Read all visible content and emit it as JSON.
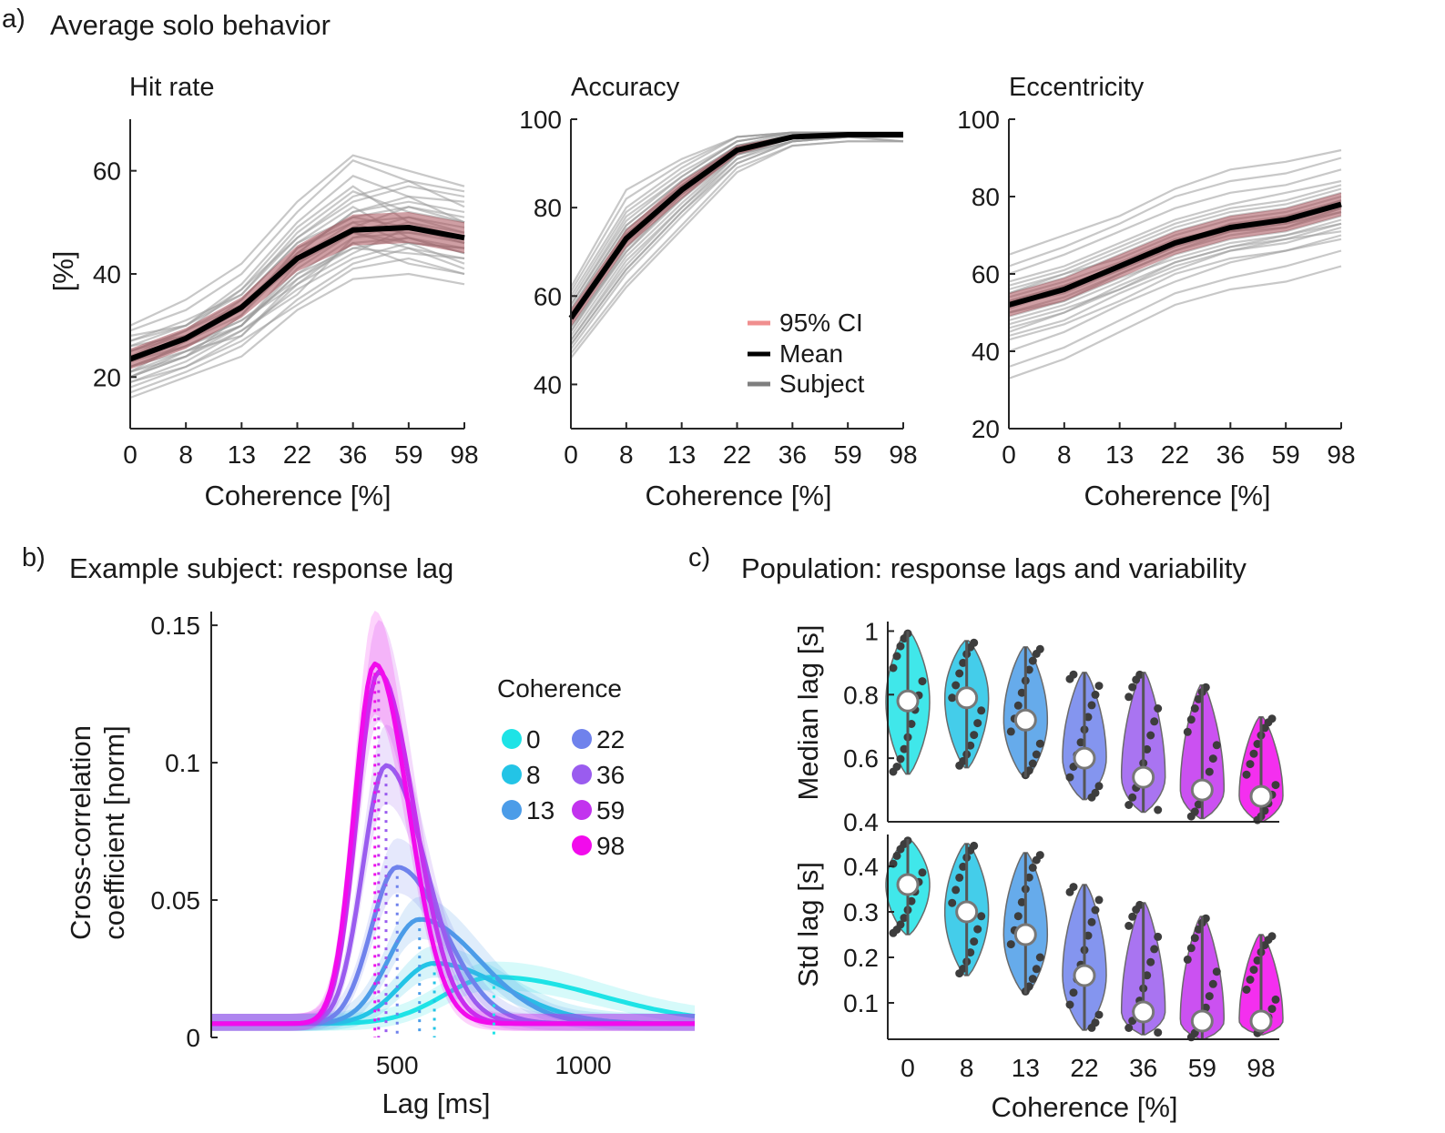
{
  "figure": {
    "panels": [
      {
        "letter": "a)",
        "title": "Average solo behavior"
      },
      {
        "letter": "b)",
        "title": "Example subject: response lag"
      },
      {
        "letter": "c)",
        "title": "Population: response lags and variability"
      }
    ],
    "legend_a": [
      {
        "label": "95% CI",
        "color": "#f08f8f"
      },
      {
        "label": "Mean",
        "color": "#000000"
      },
      {
        "label": "Subject",
        "color": "#7f7f7f"
      }
    ],
    "legend_b": {
      "title": "Coherence",
      "items": [
        {
          "label": "0",
          "color": "#1ee3e6"
        },
        {
          "label": "8",
          "color": "#23c4e6"
        },
        {
          "label": "13",
          "color": "#4b9ce8"
        },
        {
          "label": "22",
          "color": "#6f82ec"
        },
        {
          "label": "36",
          "color": "#9a5cef"
        },
        {
          "label": "59",
          "color": "#c233ee"
        },
        {
          "label": "98",
          "color": "#f20bec"
        }
      ]
    }
  },
  "chart_data": [
    {
      "type": "line",
      "panel": "a",
      "title": "Hit rate",
      "xlabel": "Coherence [%]",
      "ylabel": "[%]",
      "categories": [
        "0",
        "8",
        "13",
        "22",
        "36",
        "59",
        "98"
      ],
      "ylim": [
        10,
        70
      ],
      "yticks": [
        20,
        40,
        60
      ],
      "series": [
        {
          "name": "Mean",
          "values": [
            23.5,
            27.5,
            33.5,
            43,
            48.5,
            49,
            47
          ]
        },
        {
          "name": "95% CI",
          "lower": [
            21.5,
            25.5,
            31.5,
            40.5,
            45.5,
            46,
            44
          ],
          "upper": [
            25.5,
            29.5,
            35.5,
            45.5,
            51.5,
            52,
            50
          ]
        }
      ],
      "subjects": [
        [
          22,
          26,
          31,
          39,
          46,
          47,
          45
        ],
        [
          25,
          28,
          34,
          44,
          52,
          55,
          50
        ],
        [
          20,
          24,
          29,
          37,
          43,
          46,
          42
        ],
        [
          27,
          31,
          36,
          47,
          55,
          58,
          53
        ],
        [
          18,
          22,
          27,
          34,
          41,
          43,
          40
        ],
        [
          24,
          29,
          37,
          49,
          57,
          50,
          48
        ],
        [
          21,
          27,
          33,
          42,
          49,
          53,
          51
        ],
        [
          29,
          33,
          40,
          52,
          62,
          58,
          56
        ],
        [
          16,
          20,
          24,
          33,
          39,
          40,
          38
        ],
        [
          26,
          28,
          33,
          45,
          51,
          49,
          46
        ],
        [
          23,
          26,
          30,
          40,
          45,
          44,
          43
        ],
        [
          19,
          23,
          29,
          36,
          47,
          50,
          47
        ],
        [
          28,
          30,
          38,
          50,
          59,
          55,
          54
        ],
        [
          22,
          25,
          30,
          41,
          48,
          51,
          49
        ],
        [
          24,
          27,
          35,
          46,
          53,
          47,
          44
        ],
        [
          20,
          25,
          28,
          38,
          44,
          49,
          46
        ],
        [
          26,
          30,
          36,
          48,
          56,
          52,
          50
        ],
        [
          21,
          24,
          32,
          43,
          50,
          46,
          45
        ],
        [
          30,
          35,
          42,
          54,
          63,
          60,
          57
        ],
        [
          17,
          21,
          26,
          35,
          42,
          45,
          41
        ],
        [
          25,
          29,
          34,
          43,
          49,
          48,
          47
        ],
        [
          23,
          28,
          33,
          44,
          52,
          54,
          52
        ],
        [
          22,
          26,
          31,
          38,
          46,
          42,
          40
        ],
        [
          27,
          30,
          37,
          47,
          54,
          57,
          55
        ],
        [
          19,
          22,
          28,
          39,
          45,
          47,
          44
        ],
        [
          24,
          27,
          32,
          45,
          50,
          51,
          48
        ],
        [
          21,
          25,
          30,
          42,
          48,
          45,
          43
        ],
        [
          25,
          29,
          35,
          46,
          51,
          53,
          50
        ],
        [
          23,
          27,
          33,
          44,
          48,
          46,
          45
        ],
        [
          20,
          24,
          30,
          40,
          47,
          48,
          46
        ]
      ]
    },
    {
      "type": "line",
      "panel": "a",
      "title": "Accuracy",
      "xlabel": "",
      "ylabel": "",
      "categories": [
        "0",
        "8",
        "13",
        "22",
        "36",
        "59",
        "98"
      ],
      "ylim": [
        30,
        100
      ],
      "yticks": [
        40,
        60,
        80,
        100
      ],
      "series": [
        {
          "name": "Mean",
          "values": [
            55,
            73,
            84,
            93,
            96,
            96.5,
            96.5
          ]
        },
        {
          "name": "95% CI",
          "lower": [
            53,
            71,
            82,
            92,
            95.5,
            96,
            96
          ],
          "upper": [
            57,
            75,
            86,
            94,
            96.5,
            97,
            97
          ]
        }
      ],
      "subjects": [
        [
          52,
          70,
          82,
          93,
          96,
          97,
          97
        ],
        [
          58,
          77,
          87,
          95,
          97,
          97,
          96
        ],
        [
          49,
          66,
          79,
          91,
          95,
          96,
          96
        ],
        [
          60,
          80,
          89,
          96,
          97,
          97,
          97
        ],
        [
          47,
          63,
          76,
          89,
          94,
          95,
          95
        ],
        [
          55,
          74,
          85,
          94,
          96,
          97,
          97
        ],
        [
          54,
          72,
          83,
          92,
          96,
          96,
          96
        ],
        [
          62,
          84,
          91,
          96,
          97,
          97,
          97
        ],
        [
          50,
          68,
          80,
          92,
          95,
          96,
          95
        ],
        [
          57,
          76,
          86,
          94,
          96,
          97,
          97
        ],
        [
          53,
          71,
          84,
          93,
          97,
          97,
          97
        ],
        [
          48,
          65,
          78,
          90,
          95,
          96,
          96
        ],
        [
          59,
          79,
          88,
          95,
          97,
          97,
          97
        ],
        [
          56,
          73,
          84,
          93,
          96,
          96,
          96
        ],
        [
          51,
          69,
          81,
          92,
          96,
          96,
          96
        ],
        [
          61,
          82,
          90,
          96,
          97,
          97,
          97
        ],
        [
          46,
          62,
          75,
          88,
          94,
          95,
          95
        ],
        [
          54,
          75,
          85,
          94,
          96,
          97,
          97
        ],
        [
          52,
          71,
          82,
          92,
          95,
          96,
          96
        ],
        [
          58,
          78,
          87,
          95,
          97,
          97,
          97
        ],
        [
          50,
          67,
          80,
          91,
          96,
          96,
          96
        ],
        [
          55,
          74,
          84,
          93,
          96,
          97,
          96
        ],
        [
          53,
          70,
          83,
          92,
          96,
          96,
          96
        ],
        [
          57,
          76,
          86,
          94,
          97,
          97,
          97
        ],
        [
          49,
          66,
          79,
          90,
          95,
          96,
          95
        ],
        [
          56,
          75,
          85,
          94,
          96,
          97,
          97
        ]
      ]
    },
    {
      "type": "line",
      "panel": "a",
      "title": "Eccentricity",
      "xlabel": "",
      "ylabel": "",
      "categories": [
        "0",
        "8",
        "13",
        "22",
        "36",
        "59",
        "98"
      ],
      "ylim": [
        20,
        100
      ],
      "yticks": [
        20,
        40,
        60,
        80,
        100
      ],
      "series": [
        {
          "name": "Mean",
          "values": [
            52,
            56,
            62,
            68,
            72,
            74,
            78
          ]
        },
        {
          "name": "95% CI",
          "lower": [
            49,
            53,
            59,
            65,
            69,
            71,
            75
          ],
          "upper": [
            55,
            59,
            65,
            71,
            75,
            77,
            81
          ]
        }
      ],
      "subjects": [
        [
          50,
          54,
          60,
          66,
          70,
          72,
          76
        ],
        [
          55,
          60,
          66,
          72,
          76,
          78,
          82
        ],
        [
          45,
          50,
          57,
          63,
          67,
          70,
          74
        ],
        [
          60,
          65,
          71,
          77,
          81,
          83,
          87
        ],
        [
          40,
          45,
          52,
          58,
          63,
          66,
          70
        ],
        [
          53,
          57,
          62,
          68,
          73,
          75,
          79
        ],
        [
          48,
          52,
          58,
          65,
          69,
          71,
          75
        ],
        [
          62,
          67,
          73,
          80,
          84,
          86,
          90
        ],
        [
          36,
          41,
          48,
          55,
          59,
          62,
          66
        ],
        [
          56,
          60,
          64,
          70,
          74,
          76,
          80
        ],
        [
          52,
          55,
          61,
          67,
          71,
          73,
          77
        ],
        [
          44,
          48,
          55,
          61,
          66,
          68,
          72
        ],
        [
          58,
          62,
          68,
          74,
          78,
          81,
          84
        ],
        [
          50,
          53,
          59,
          64,
          68,
          70,
          73
        ],
        [
          47,
          51,
          56,
          62,
          66,
          69,
          71
        ],
        [
          65,
          70,
          75,
          82,
          87,
          89,
          92
        ],
        [
          33,
          38,
          45,
          52,
          56,
          58,
          62
        ],
        [
          54,
          58,
          63,
          69,
          72,
          75,
          78
        ],
        [
          51,
          56,
          62,
          68,
          73,
          74,
          79
        ],
        [
          57,
          61,
          67,
          73,
          77,
          79,
          83
        ],
        [
          43,
          47,
          53,
          60,
          64,
          66,
          69
        ],
        [
          53,
          57,
          62,
          68,
          71,
          73,
          76
        ],
        [
          49,
          53,
          60,
          66,
          71,
          72,
          77
        ],
        [
          55,
          59,
          65,
          71,
          75,
          77,
          81
        ],
        [
          46,
          50,
          56,
          63,
          67,
          69,
          73
        ],
        [
          52,
          56,
          61,
          67,
          72,
          74,
          78
        ]
      ]
    },
    {
      "type": "line",
      "panel": "b",
      "title": "",
      "xlabel": "Lag [ms]",
      "ylabel": "Cross-correlation coefficient [norm]",
      "xlim": [
        0,
        1300
      ],
      "ylim": [
        0,
        0.155
      ],
      "xticks": [
        500,
        1000
      ],
      "yticks": [
        0,
        0.05,
        0.1,
        0.15
      ],
      "series": [
        {
          "name": "0",
          "peak_lag": 760,
          "peak_value": 0.022
        },
        {
          "name": "8",
          "peak_lag": 600,
          "peak_value": 0.027
        },
        {
          "name": "13",
          "peak_lag": 560,
          "peak_value": 0.043
        },
        {
          "name": "22",
          "peak_lag": 500,
          "peak_value": 0.062
        },
        {
          "name": "36",
          "peak_lag": 470,
          "peak_value": 0.099
        },
        {
          "name": "59",
          "peak_lag": 450,
          "peak_value": 0.133
        },
        {
          "name": "98",
          "peak_lag": 440,
          "peak_value": 0.136
        }
      ]
    },
    {
      "type": "violin",
      "panel": "c",
      "xlabel": "Coherence [%]",
      "categories": [
        "0",
        "8",
        "13",
        "22",
        "36",
        "59",
        "98"
      ],
      "subplots": [
        {
          "ylabel": "Median lag [s]",
          "ylim": [
            0.4,
            1.03
          ],
          "yticks": [
            0.4,
            0.6,
            0.8,
            1
          ],
          "median": [
            0.78,
            0.79,
            0.72,
            0.6,
            0.54,
            0.5,
            0.48
          ],
          "min": [
            0.55,
            0.57,
            0.54,
            0.47,
            0.43,
            0.41,
            0.4
          ],
          "max": [
            1.0,
            0.97,
            0.95,
            0.87,
            0.87,
            0.83,
            0.73
          ]
        },
        {
          "ylabel": "Std lag [s]",
          "ylim": [
            0.02,
            0.47
          ],
          "yticks": [
            0.1,
            0.2,
            0.3,
            0.4
          ],
          "median": [
            0.36,
            0.3,
            0.25,
            0.16,
            0.08,
            0.06,
            0.06
          ],
          "min": [
            0.25,
            0.16,
            0.12,
            0.04,
            0.03,
            0.02,
            0.03
          ],
          "max": [
            0.46,
            0.45,
            0.43,
            0.36,
            0.32,
            0.29,
            0.25
          ]
        }
      ]
    }
  ]
}
